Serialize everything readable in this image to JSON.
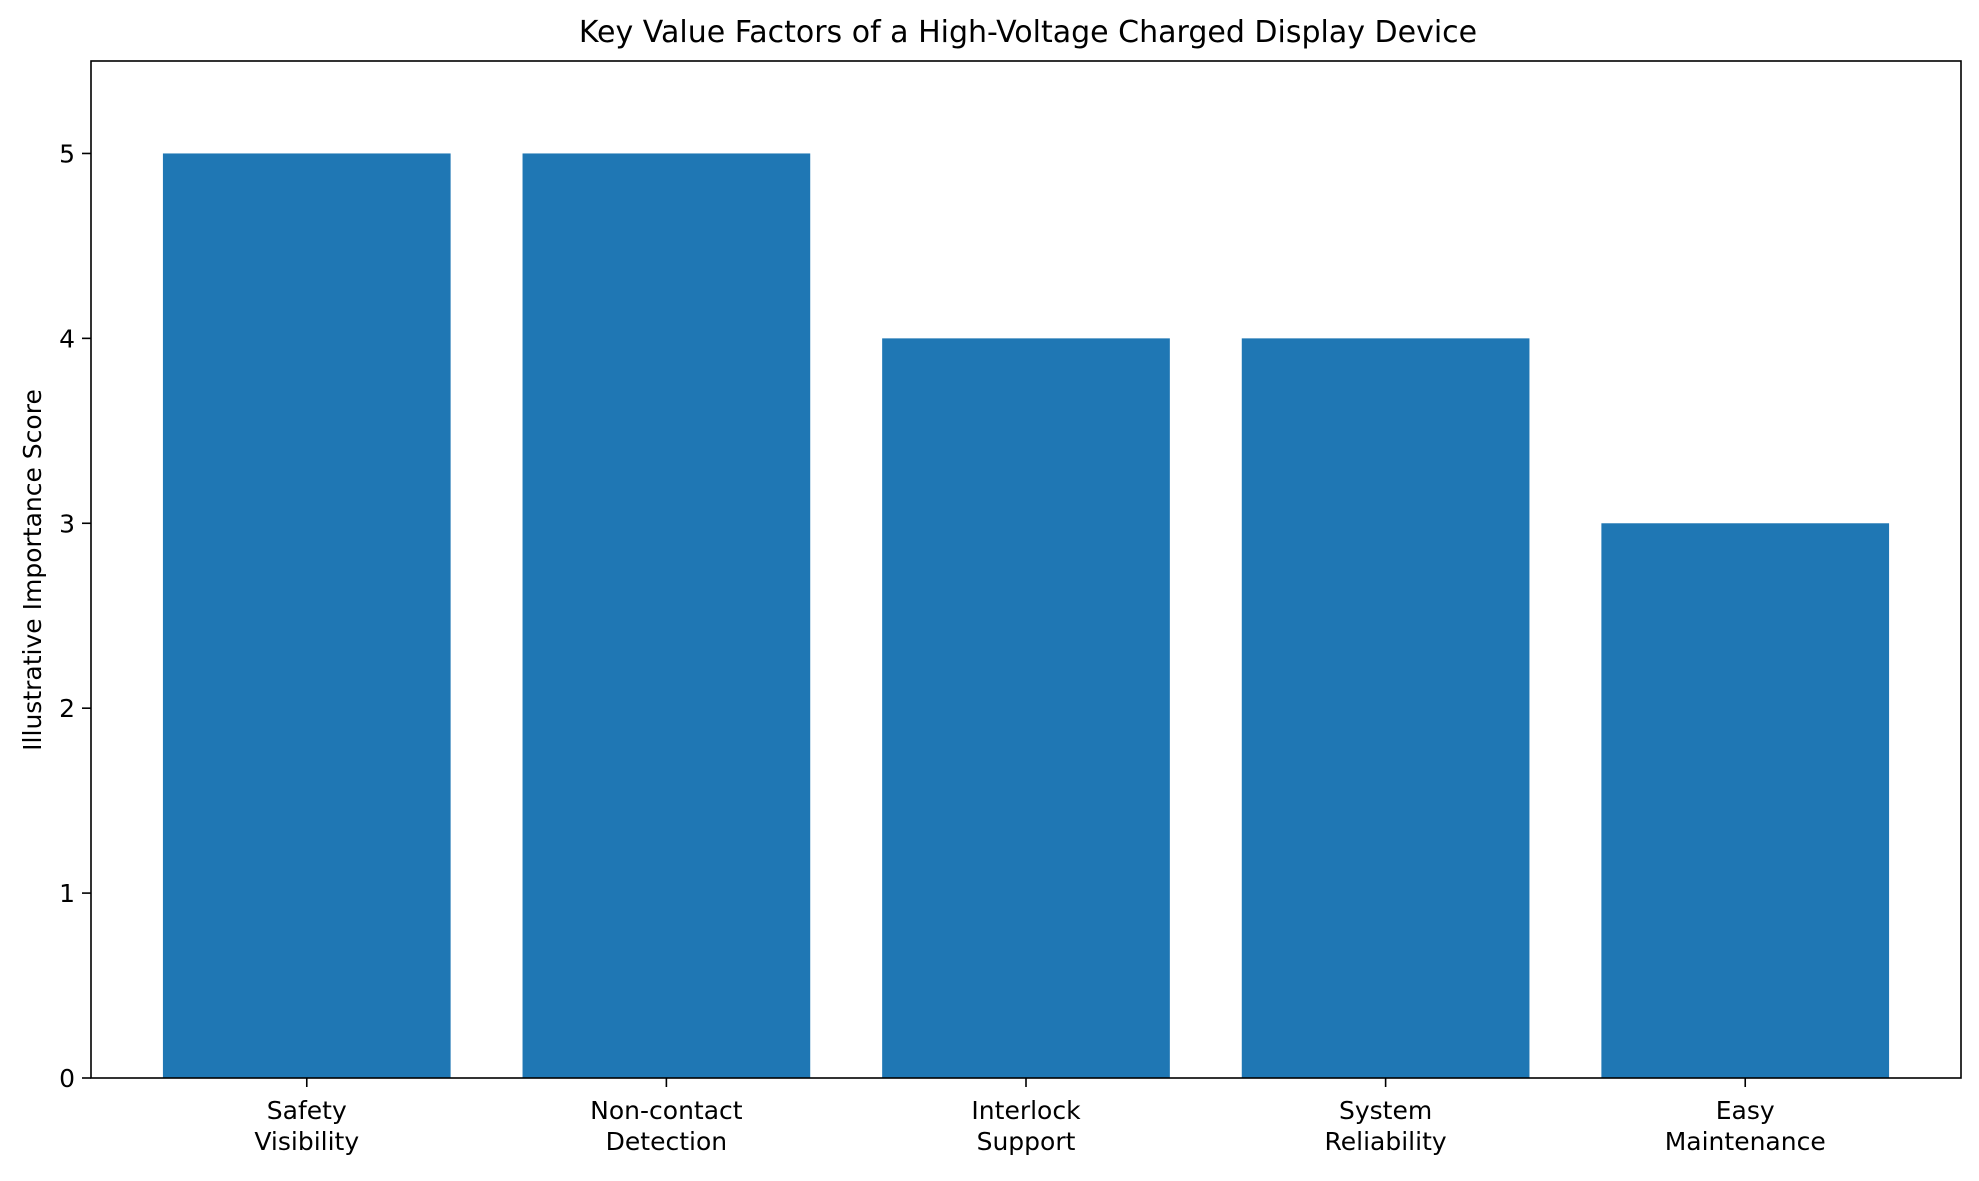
{
  "chart_data": {
    "type": "bar",
    "title": "Key Value Factors of a High-Voltage Charged Display Device",
    "xlabel": "",
    "ylabel": "Illustrative Importance Score",
    "categories": [
      [
        "Safety",
        "Visibility"
      ],
      [
        "Non-contact",
        "Detection"
      ],
      [
        "Interlock",
        "Support"
      ],
      [
        "System",
        "Reliability"
      ],
      [
        "Easy",
        "Maintenance"
      ]
    ],
    "values": [
      5,
      5,
      4,
      4,
      3
    ],
    "ylim": [
      0,
      5.5
    ],
    "yticks": [
      0,
      1,
      2,
      3,
      4,
      5
    ],
    "grid": false,
    "legend": "none",
    "bar_color": "#1f77b4"
  }
}
